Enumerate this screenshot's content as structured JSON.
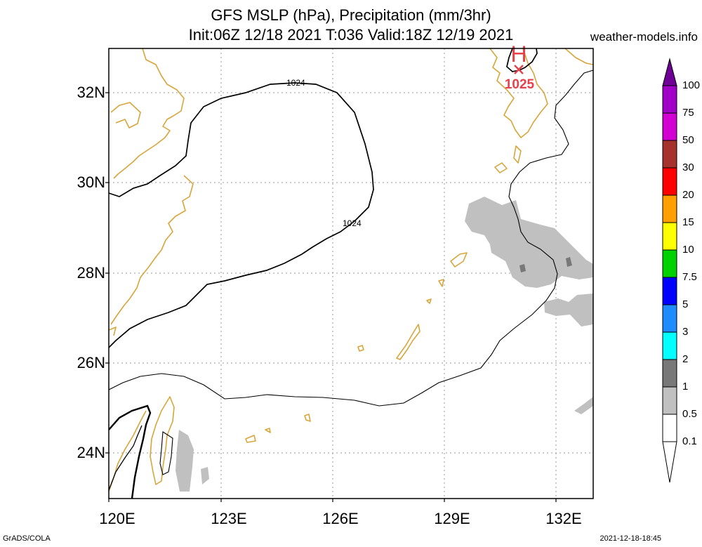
{
  "title": {
    "line1": "GFS MSLP (hPa), Precipitation (mm/3hr)",
    "line2": "Init:06Z 12/18 2021 T:036 Valid:18Z 12/19 2021",
    "site": "weather-models.info"
  },
  "axes": {
    "lat_labels": [
      "32N",
      "30N",
      "28N",
      "26N",
      "24N"
    ],
    "lon_labels": [
      "120E",
      "123E",
      "126E",
      "129E",
      "132E"
    ]
  },
  "map": {
    "domain": {
      "lon": [
        120,
        133
      ],
      "lat": [
        23,
        33
      ]
    },
    "grid": "dotted",
    "coastline_color": "#d9a53a",
    "isobar_labels": [
      "1024",
      "1024"
    ],
    "high": {
      "symbol": "H",
      "value": "1025",
      "color": "#e8404a"
    }
  },
  "colorbar": {
    "labels": [
      "100",
      "75",
      "50",
      "30",
      "20",
      "15",
      "10",
      "7.5",
      "5",
      "3",
      "2",
      "1",
      "0.5",
      "0.1"
    ],
    "colors": [
      "#6e0096",
      "#a000c8",
      "#d200d2",
      "#a5322d",
      "#ff0000",
      "#ff9f00",
      "#ffff00",
      "#00d200",
      "#0000ff",
      "#1e8cff",
      "#00ffff",
      "#787878",
      "#c0c0c0"
    ]
  },
  "footer": {
    "left": "GrADS/COLA",
    "right": "2021-12-18-18:45"
  }
}
